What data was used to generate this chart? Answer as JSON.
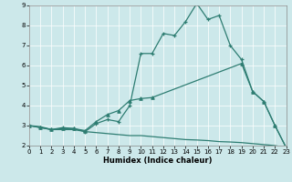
{
  "xlabel": "Humidex (Indice chaleur)",
  "xlim": [
    0,
    23
  ],
  "ylim": [
    2,
    9
  ],
  "yticks": [
    2,
    3,
    4,
    5,
    6,
    7,
    8,
    9
  ],
  "xticks": [
    0,
    1,
    2,
    3,
    4,
    5,
    6,
    7,
    8,
    9,
    10,
    11,
    12,
    13,
    14,
    15,
    16,
    17,
    18,
    19,
    20,
    21,
    22,
    23
  ],
  "bg_color": "#cce8ea",
  "line_color": "#2e7d72",
  "line1_x": [
    0,
    1,
    2,
    3,
    4,
    5,
    6,
    7,
    8,
    9,
    10,
    11,
    12,
    13,
    14,
    15,
    16,
    17,
    18,
    19,
    20,
    21,
    22,
    23
  ],
  "line1_y": [
    3.0,
    2.9,
    2.8,
    2.9,
    2.85,
    2.7,
    3.1,
    3.3,
    3.2,
    4.0,
    6.6,
    6.6,
    7.6,
    7.5,
    8.2,
    9.1,
    8.3,
    8.5,
    7.0,
    6.3,
    4.7,
    4.2,
    3.0,
    1.9
  ],
  "line2_x": [
    0,
    1,
    2,
    3,
    4,
    5,
    6,
    7,
    8,
    9,
    10,
    11,
    19,
    20,
    21,
    22,
    23
  ],
  "line2_y": [
    3.0,
    2.9,
    2.8,
    2.85,
    2.85,
    2.75,
    3.2,
    3.55,
    3.75,
    4.25,
    4.35,
    4.4,
    6.1,
    4.7,
    4.2,
    3.0,
    1.9
  ],
  "line3_x": [
    0,
    1,
    2,
    3,
    4,
    5,
    6,
    7,
    8,
    9,
    10,
    11,
    12,
    13,
    14,
    15,
    16,
    17,
    18,
    19,
    20,
    21,
    22,
    23
  ],
  "line3_y": [
    3.0,
    2.95,
    2.8,
    2.8,
    2.8,
    2.7,
    2.65,
    2.6,
    2.55,
    2.5,
    2.5,
    2.45,
    2.4,
    2.35,
    2.3,
    2.28,
    2.25,
    2.2,
    2.18,
    2.15,
    2.1,
    2.05,
    2.0,
    1.9
  ]
}
